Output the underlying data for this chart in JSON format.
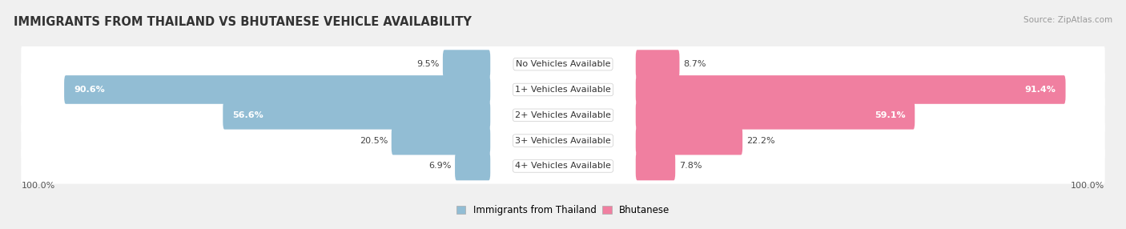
{
  "title": "IMMIGRANTS FROM THAILAND VS BHUTANESE VEHICLE AVAILABILITY",
  "source": "Source: ZipAtlas.com",
  "categories": [
    "No Vehicles Available",
    "1+ Vehicles Available",
    "2+ Vehicles Available",
    "3+ Vehicles Available",
    "4+ Vehicles Available"
  ],
  "thailand_values": [
    9.5,
    90.6,
    56.6,
    20.5,
    6.9
  ],
  "bhutanese_values": [
    8.7,
    91.4,
    59.1,
    22.2,
    7.8
  ],
  "thailand_color": "#92BDD4",
  "bhutanese_color": "#F07FA0",
  "background_color": "#f0f0f0",
  "row_bg_color": "#ffffff",
  "title_fontsize": 10.5,
  "label_fontsize": 8,
  "value_fontsize": 8,
  "legend_fontsize": 8.5,
  "footer_value": "100.0%",
  "max_value": 100
}
